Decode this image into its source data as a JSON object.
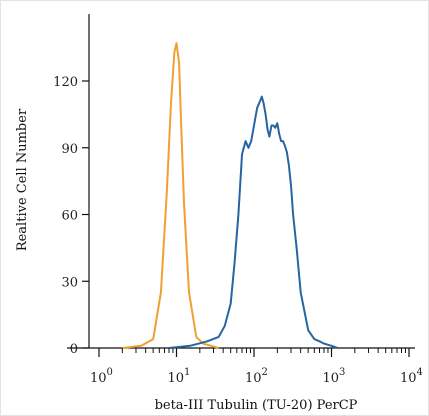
{
  "chart_data": {
    "type": "line",
    "xlabel": "beta-III Tubulin (TU-20) PerCP",
    "ylabel": "Realtive Cell Number",
    "x_scale": "log",
    "xlim": [
      1,
      10000
    ],
    "ylim": [
      0,
      140
    ],
    "yticks": [
      0,
      30,
      60,
      90,
      120
    ],
    "xticks": [
      {
        "value": 1,
        "base": "10",
        "exp": "0"
      },
      {
        "value": 10,
        "base": "10",
        "exp": "1"
      },
      {
        "value": 100,
        "base": "10",
        "exp": "2"
      },
      {
        "value": 1000,
        "base": "10",
        "exp": "3"
      },
      {
        "value": 10000,
        "base": "10",
        "exp": "4"
      }
    ],
    "series": [
      {
        "color": "#f0a030",
        "x": [
          2.0,
          3.5,
          5.0,
          6.3,
          7.5,
          8.5,
          9.4,
          10.0,
          10.8,
          11.5,
          12.5,
          14.5,
          18,
          22,
          28,
          35
        ],
        "y": [
          0,
          1,
          4,
          25,
          70,
          110,
          133,
          137,
          128,
          100,
          65,
          25,
          5,
          2,
          1,
          0
        ]
      },
      {
        "color": "#2566a2",
        "x": [
          8,
          15,
          25,
          35,
          42,
          50,
          56,
          63,
          70,
          78,
          85,
          92,
          100,
          110,
          120,
          126,
          133,
          141,
          150,
          158,
          168,
          178,
          188,
          200,
          212,
          224,
          237,
          250,
          266,
          282,
          300,
          320,
          355,
          400,
          500,
          600,
          700,
          800,
          1000,
          1200
        ],
        "y": [
          0,
          1,
          3,
          5,
          10,
          20,
          38,
          60,
          87,
          93,
          90,
          93,
          100,
          108,
          111,
          113,
          110,
          105,
          98,
          95,
          100,
          100,
          99,
          101,
          96,
          93,
          93,
          91,
          88,
          82,
          73,
          60,
          45,
          25,
          8,
          4,
          3,
          2,
          1,
          0
        ]
      }
    ]
  }
}
